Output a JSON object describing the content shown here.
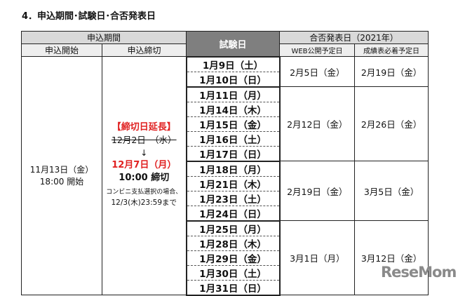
{
  "title": "4．申込期間･試験日･合否発表日",
  "headers": {
    "period": "申込期間",
    "start": "申込開始",
    "deadline": "申込締切",
    "exam": "試験日",
    "result": "合否発表日（2021年）",
    "web": "WEB公開予定日",
    "mail": "成績表必着予定日"
  },
  "start": {
    "date": "11月13日（金）",
    "time": "18:00 開始"
  },
  "deadline": {
    "extended": "【締切日延長】",
    "old": "12月2日　（水）",
    "arrow": "↓",
    "new": "12月7日（月）",
    "time": "10:00 締切",
    "note1": "コンビニ支払選択の場合、",
    "note2": "12/3(木)23:59まで"
  },
  "groups": [
    {
      "dates": [
        "1月9日（土）",
        "1月10日（日）"
      ],
      "web": "2月5日（金）",
      "mail": "2月19日（金）"
    },
    {
      "dates": [
        "1月11日（月）",
        "1月14日（木）",
        "1月15日（金）",
        "1月16日（土）",
        "1月17日（日）"
      ],
      "web": "2月12日（金）",
      "mail": "2月26日（金）"
    },
    {
      "dates": [
        "1月18日（月）",
        "1月21日（木）",
        "1月23日（土）",
        "1月24日（日）"
      ],
      "web": "2月19日（金）",
      "mail": "3月5日（金）"
    },
    {
      "dates": [
        "1月25日（月）",
        "1月28日（木）",
        "1月29日（金）",
        "1月30日（土）",
        "1月31日（日）"
      ],
      "web": "3月1日（月）",
      "mail": "3月12日（金）"
    }
  ],
  "logo": "ReseMom"
}
